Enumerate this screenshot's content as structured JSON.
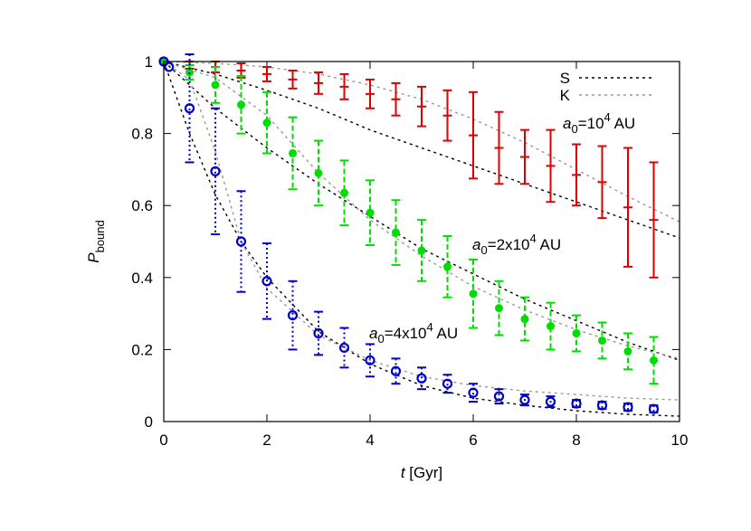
{
  "chart_data": {
    "type": "errorbar",
    "xlabel": [
      "t",
      " [Gyr]"
    ],
    "ylabel": [
      "P",
      "bound"
    ],
    "xlim": [
      0,
      10
    ],
    "ylim": [
      0,
      1
    ],
    "xticks": [
      0,
      2,
      4,
      6,
      8,
      10
    ],
    "yticks": [
      0,
      0.2,
      0.4,
      0.6,
      0.8,
      1
    ],
    "series": [
      {
        "color": "#e00000",
        "marker": "plus",
        "errorbar_dash": "none",
        "label": [
          "a",
          "0",
          "=10",
          "4",
          " AU"
        ],
        "x": [
          0,
          0.5,
          1,
          1.5,
          2,
          2.5,
          3,
          3.5,
          4,
          4.5,
          5,
          5.5,
          6,
          6.5,
          7,
          7.5,
          8,
          8.5,
          9,
          9.5
        ],
        "values": [
          1,
          0.99,
          0.985,
          0.975,
          0.965,
          0.95,
          0.94,
          0.93,
          0.91,
          0.895,
          0.875,
          0.85,
          0.795,
          0.76,
          0.735,
          0.71,
          0.685,
          0.665,
          0.595,
          0.56
        ],
        "errors": [
          0,
          0.01,
          0.015,
          0.02,
          0.02,
          0.025,
          0.03,
          0.035,
          0.04,
          0.045,
          0.055,
          0.07,
          0.12,
          0.1,
          0.075,
          0.1,
          0.085,
          0.1,
          0.165,
          0.16
        ]
      },
      {
        "color": "#00dd00",
        "marker": "dot",
        "errorbar_dash": "6,3",
        "label": [
          "a",
          "0",
          "=2x10",
          "4",
          " AU"
        ],
        "x": [
          0,
          0.5,
          1,
          1.5,
          2,
          2.5,
          3,
          3.5,
          4,
          4.5,
          5,
          5.5,
          6,
          6.5,
          7,
          7.5,
          8,
          8.5,
          9,
          9.5
        ],
        "values": [
          1,
          0.97,
          0.935,
          0.88,
          0.83,
          0.745,
          0.69,
          0.635,
          0.58,
          0.525,
          0.475,
          0.43,
          0.355,
          0.315,
          0.285,
          0.265,
          0.245,
          0.225,
          0.195,
          0.17
        ],
        "errors": [
          0,
          0.02,
          0.05,
          0.08,
          0.085,
          0.1,
          0.09,
          0.09,
          0.09,
          0.09,
          0.085,
          0.085,
          0.095,
          0.075,
          0.06,
          0.065,
          0.05,
          0.05,
          0.05,
          0.065
        ]
      },
      {
        "color": "#0000cc",
        "marker": "circle",
        "errorbar_dash": "2,3",
        "label": [
          "a",
          "0",
          "=4x10",
          "4",
          " AU"
        ],
        "x": [
          0,
          0.1,
          0.5,
          1,
          1.5,
          2,
          2.5,
          3,
          3.5,
          4,
          4.5,
          5,
          5.5,
          6,
          6.5,
          7,
          7.5,
          8,
          8.5,
          9,
          9.5
        ],
        "values": [
          1,
          0.985,
          0.87,
          0.695,
          0.5,
          0.39,
          0.295,
          0.245,
          0.205,
          0.17,
          0.14,
          0.12,
          0.105,
          0.08,
          0.07,
          0.06,
          0.055,
          0.05,
          0.045,
          0.04,
          0.035
        ],
        "errors": [
          0,
          0,
          0.15,
          0.175,
          0.14,
          0.105,
          0.095,
          0.06,
          0.055,
          0.045,
          0.035,
          0.03,
          0.025,
          0.025,
          0.02,
          0.015,
          0.015,
          0.01,
          0.01,
          0.01,
          0.01
        ]
      }
    ],
    "models": [
      {
        "name": "S",
        "color": "#000000",
        "dash": "3,4",
        "curves": [
          {
            "x": [
              0,
              1,
              2,
              3,
              4,
              5,
              6,
              7,
              8,
              9,
              10
            ],
            "values": [
              1,
              0.965,
              0.92,
              0.87,
              0.81,
              0.76,
              0.71,
              0.66,
              0.61,
              0.56,
              0.51
            ]
          },
          {
            "x": [
              0,
              1,
              2,
              3,
              4,
              5,
              6,
              7,
              8,
              9,
              10
            ],
            "values": [
              1,
              0.87,
              0.76,
              0.66,
              0.57,
              0.48,
              0.41,
              0.34,
              0.28,
              0.22,
              0.17
            ]
          },
          {
            "x": [
              0,
              0.5,
              1,
              1.5,
              2,
              3,
              4,
              5,
              6,
              7,
              8,
              9,
              10
            ],
            "values": [
              1,
              0.8,
              0.63,
              0.5,
              0.4,
              0.25,
              0.16,
              0.1,
              0.065,
              0.045,
              0.03,
              0.02,
              0.015
            ]
          }
        ]
      },
      {
        "name": "K",
        "color": "#999999",
        "dash": "3,4",
        "curves": [
          {
            "x": [
              0,
              1,
              2,
              3,
              4,
              5,
              6,
              7,
              8,
              9,
              10
            ],
            "values": [
              1,
              0.995,
              0.985,
              0.965,
              0.935,
              0.895,
              0.84,
              0.775,
              0.7,
              0.625,
              0.555
            ]
          },
          {
            "x": [
              0,
              1,
              2,
              3,
              4,
              5,
              6,
              7,
              8,
              9,
              10
            ],
            "values": [
              1,
              0.955,
              0.85,
              0.69,
              0.56,
              0.46,
              0.375,
              0.31,
              0.255,
              0.21,
              0.175
            ]
          },
          {
            "x": [
              0,
              0.5,
              1,
              1.5,
              2,
              3,
              4,
              5,
              6,
              7,
              8,
              9,
              10
            ],
            "values": [
              1,
              0.95,
              0.75,
              0.5,
              0.37,
              0.24,
              0.17,
              0.125,
              0.1,
              0.085,
              0.075,
              0.065,
              0.06
            ]
          }
        ]
      }
    ]
  }
}
